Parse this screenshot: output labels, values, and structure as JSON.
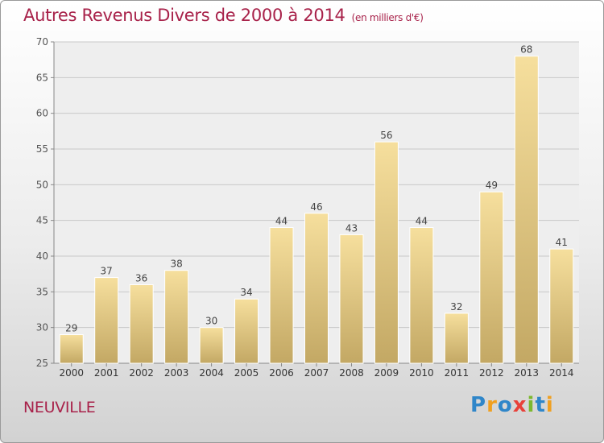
{
  "title": "Autres Revenus Divers de 2000 à 2014",
  "title_unit": "(en milliers d'€)",
  "location": "NEUVILLE",
  "brand": {
    "name": "Proxiti",
    "letters": [
      {
        "ch": "P",
        "color": "#2f86c9"
      },
      {
        "ch": "r",
        "color": "#f0a020"
      },
      {
        "ch": "o",
        "color": "#2f86c9"
      },
      {
        "ch": "x",
        "color": "#e8413a"
      },
      {
        "ch": "i",
        "color": "#7cb82f"
      },
      {
        "ch": "t",
        "color": "#2f86c9"
      },
      {
        "ch": "i",
        "color": "#f0a020"
      }
    ]
  },
  "colors": {
    "title": "#a8224a",
    "bar_light": "#f6df9d",
    "bar_dark": "#c3a864",
    "grid": "#c8c8c8"
  },
  "chart_data": {
    "type": "bar",
    "categories": [
      "2000",
      "2001",
      "2002",
      "2003",
      "2004",
      "2005",
      "2006",
      "2007",
      "2008",
      "2009",
      "2010",
      "2011",
      "2012",
      "2013",
      "2014"
    ],
    "values": [
      29,
      37,
      36,
      38,
      30,
      34,
      44,
      46,
      43,
      56,
      44,
      32,
      49,
      68,
      41
    ],
    "ylim": [
      25,
      70
    ],
    "yticks": [
      25,
      30,
      35,
      40,
      45,
      50,
      55,
      60,
      65,
      70
    ],
    "grid": true,
    "data_labels": true
  }
}
